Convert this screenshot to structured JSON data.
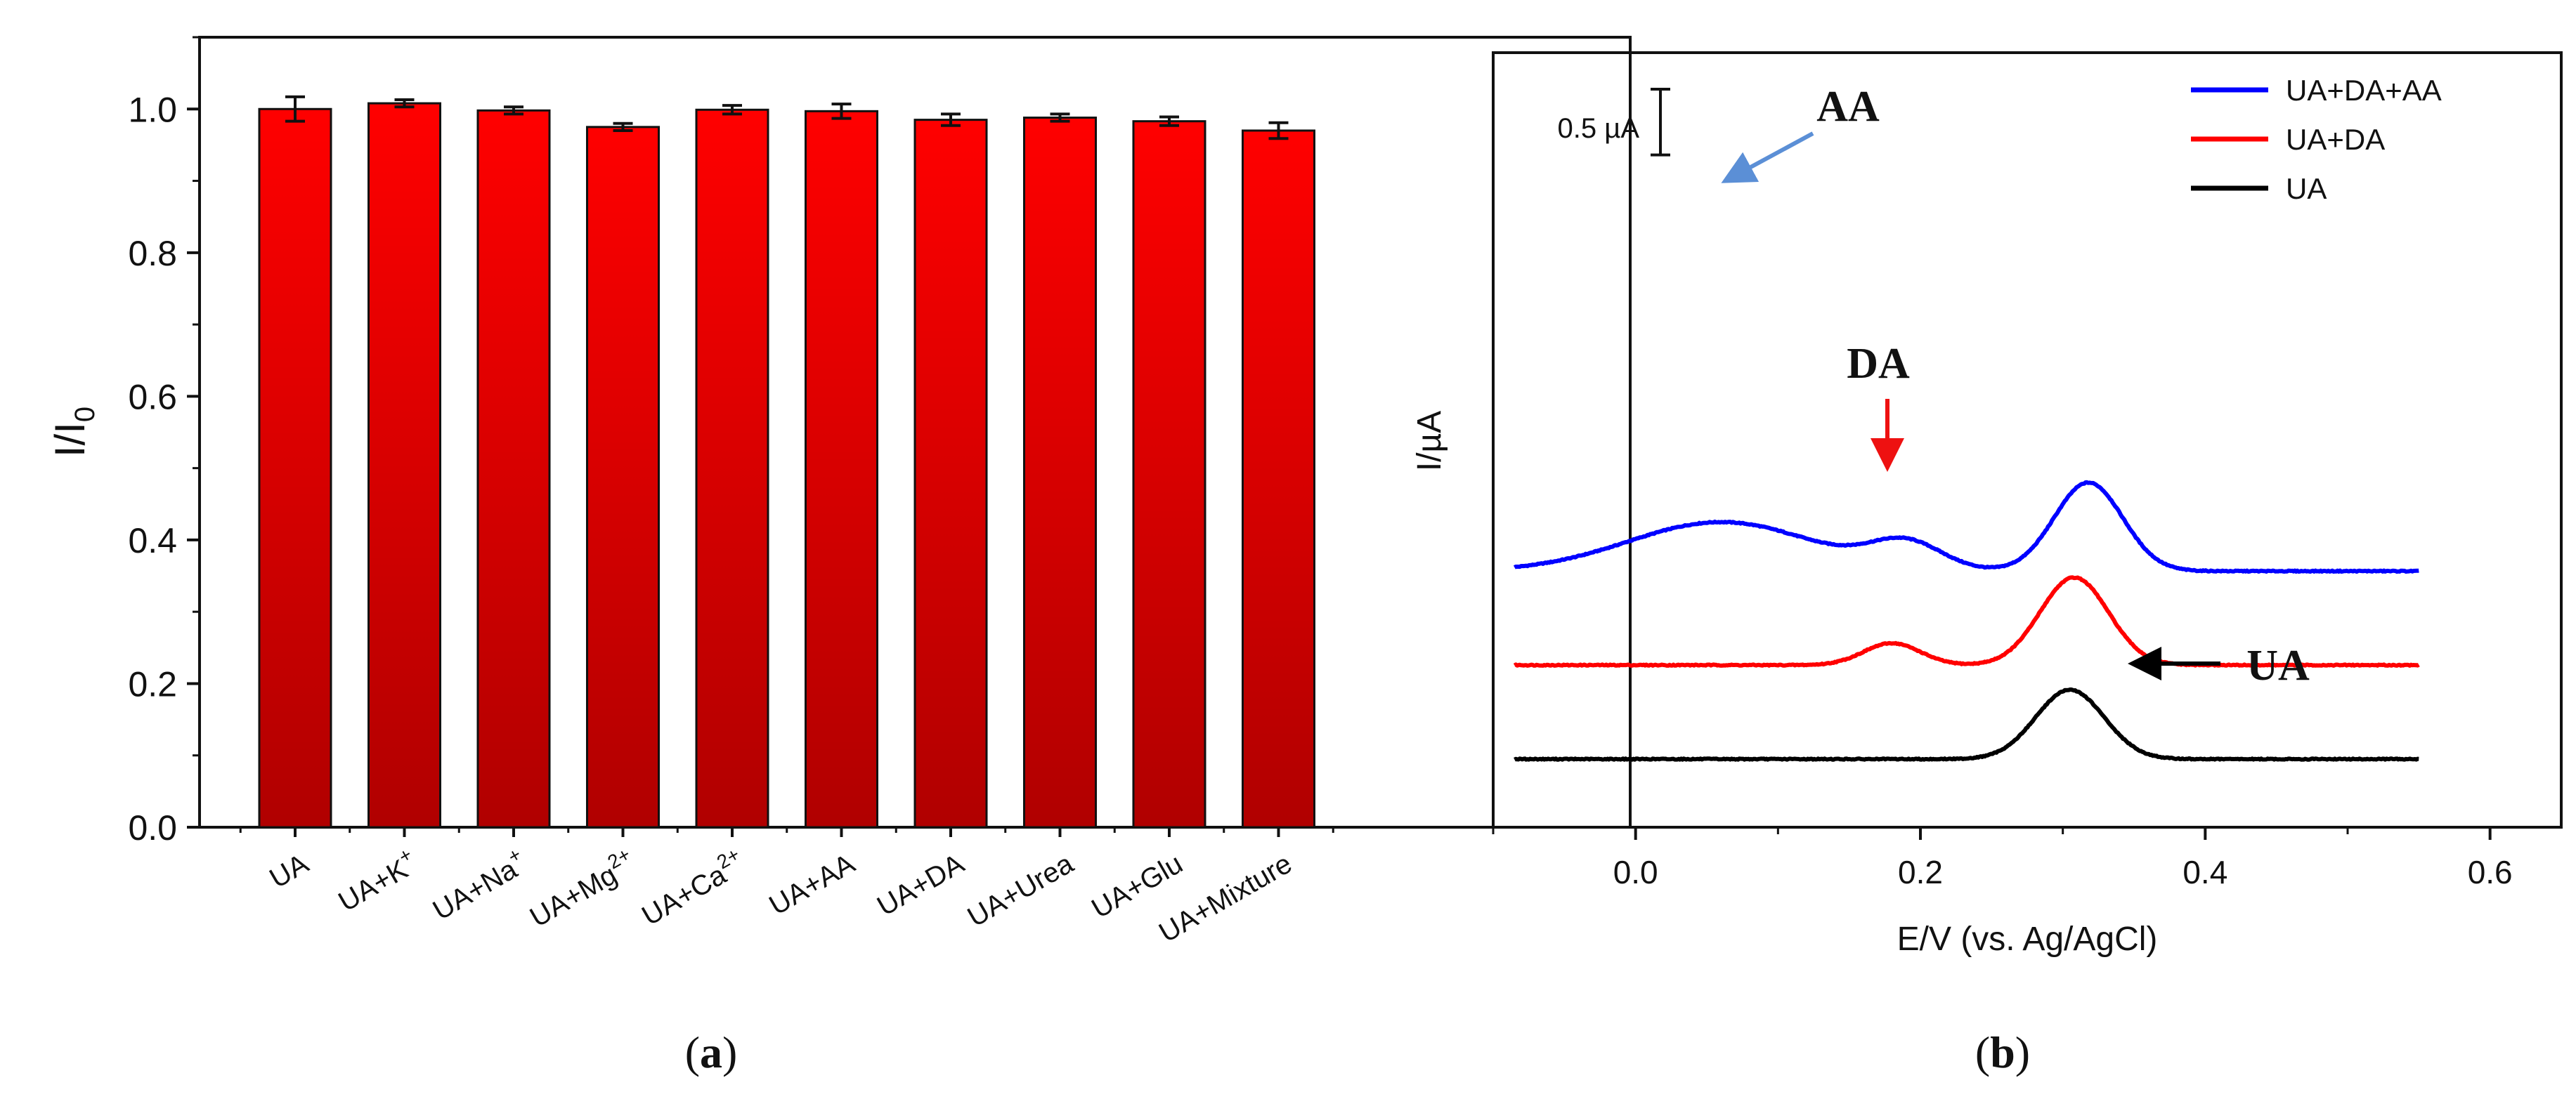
{
  "chart_data": [
    {
      "type": "bar",
      "panel_label": "a",
      "title": "",
      "xlabel": "",
      "ylabel": "I/I0",
      "ylabel_parts": {
        "base": "I/I",
        "sub": "0"
      },
      "ylim": [
        0,
        1.1
      ],
      "yticks": [
        "0.0",
        "0.2",
        "0.4",
        "0.6",
        "0.8",
        "1.0"
      ],
      "ytick_values": [
        0,
        0.2,
        0.4,
        0.6,
        0.8,
        1.0
      ],
      "categories": [
        "UA",
        "UA+K+",
        "UA+Na+",
        "UA+Mg2+",
        "UA+Ca2+",
        "UA+AA",
        "UA+DA",
        "UA+Urea",
        "UA+Glu",
        "UA+Mixture"
      ],
      "category_labels": [
        {
          "base": "UA",
          "sup": ""
        },
        {
          "base": "UA+K",
          "sup": "+"
        },
        {
          "base": "UA+Na",
          "sup": "+"
        },
        {
          "base": "UA+Mg",
          "sup": "2+"
        },
        {
          "base": "UA+Ca",
          "sup": "2+"
        },
        {
          "base": "UA+AA",
          "sup": ""
        },
        {
          "base": "UA+DA",
          "sup": ""
        },
        {
          "base": "UA+Urea",
          "sup": ""
        },
        {
          "base": "UA+Glu",
          "sup": ""
        },
        {
          "base": "UA+Mixture",
          "sup": ""
        }
      ],
      "values": [
        1.0,
        1.008,
        0.998,
        0.975,
        0.999,
        0.997,
        0.985,
        0.988,
        0.983,
        0.97
      ],
      "errors": [
        0.017,
        0.005,
        0.005,
        0.005,
        0.006,
        0.01,
        0.008,
        0.005,
        0.006,
        0.011
      ],
      "bar_color_top": "#ff0000",
      "bar_color_bottom": "#b00000"
    },
    {
      "type": "line",
      "panel_label": "b",
      "title": "",
      "xlabel": "E/V (vs. Ag/AgCl)",
      "ylabel": "I/µA",
      "xlim": [
        -0.1,
        0.65
      ],
      "xticks": [
        "0.0",
        "0.2",
        "0.4",
        "0.6"
      ],
      "xtick_values": [
        0.0,
        0.2,
        0.4,
        0.6
      ],
      "scale_bar_label": "0.5 µA",
      "scale_bar_value": 0.5,
      "annotations": [
        {
          "text": "AA",
          "color": "#5b8fd6"
        },
        {
          "text": "DA",
          "color": "#ee1111"
        },
        {
          "text": "UA",
          "color": "#000000"
        }
      ],
      "series": [
        {
          "name": "UA+DA+AA",
          "color": "#0000ff",
          "offset": 2.2,
          "components": [
            {
              "type": "gauss",
              "center": 0.06,
              "amp": 0.56,
              "width": 0.065
            },
            {
              "type": "gauss",
              "center": 0.19,
              "amp": 0.3,
              "width": 0.025
            },
            {
              "type": "gauss",
              "center": 0.318,
              "amp": 1.01,
              "width": 0.024
            }
          ],
          "x_start": -0.085,
          "x_end": 0.55
        },
        {
          "name": "UA+DA",
          "color": "#ff0000",
          "offset": 1.1,
          "components": [
            {
              "type": "gauss",
              "center": 0.18,
              "amp": 0.25,
              "width": 0.02
            },
            {
              "type": "gauss",
              "center": 0.308,
              "amp": 1.0,
              "width": 0.024
            }
          ],
          "x_start": -0.085,
          "x_end": 0.55
        },
        {
          "name": "UA",
          "color": "#000000",
          "offset": 0.0,
          "components": [
            {
              "type": "gauss",
              "center": 0.305,
              "amp": 0.79,
              "width": 0.024
            }
          ],
          "x_start": -0.085,
          "x_end": 0.55
        }
      ],
      "legend_position": "top-right"
    }
  ]
}
